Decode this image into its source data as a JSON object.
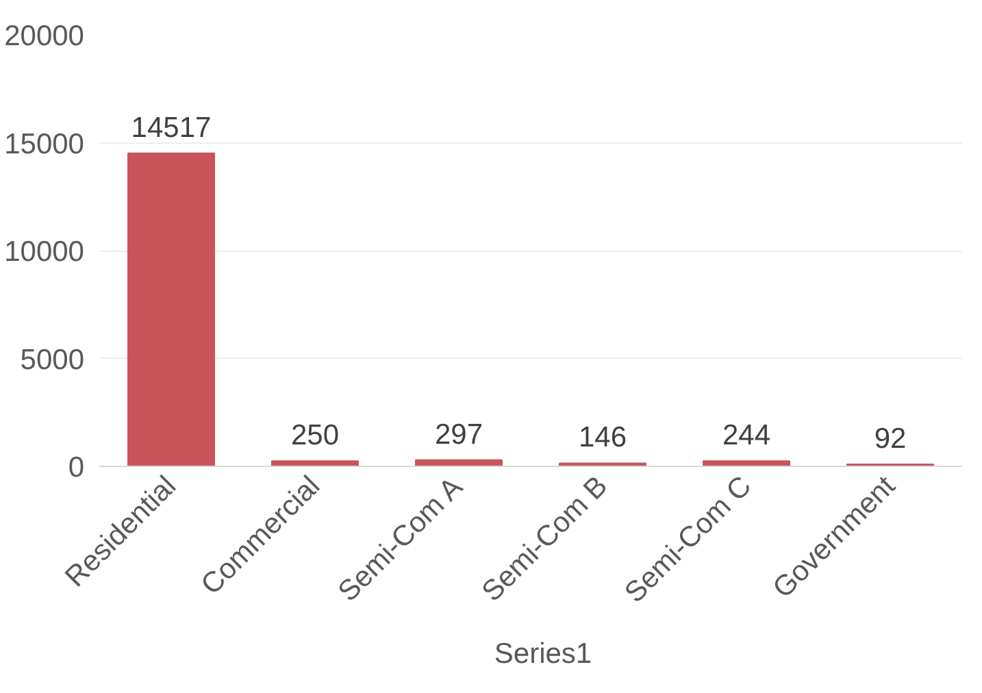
{
  "chart_data": {
    "type": "bar",
    "categories": [
      "Residential",
      "Commercial",
      "Semi-Com A",
      "Semi-Com B",
      "Semi-Com C",
      "Government"
    ],
    "series": [
      {
        "name": "Series1",
        "color": "#c9555a",
        "values": [
          14517,
          250,
          297,
          146,
          244,
          92
        ]
      }
    ],
    "ylim": [
      0,
      20000
    ],
    "yticks": [
      0,
      5000,
      10000,
      15000,
      20000
    ],
    "grid": "y",
    "legend": "bottom",
    "data_labels": true
  }
}
